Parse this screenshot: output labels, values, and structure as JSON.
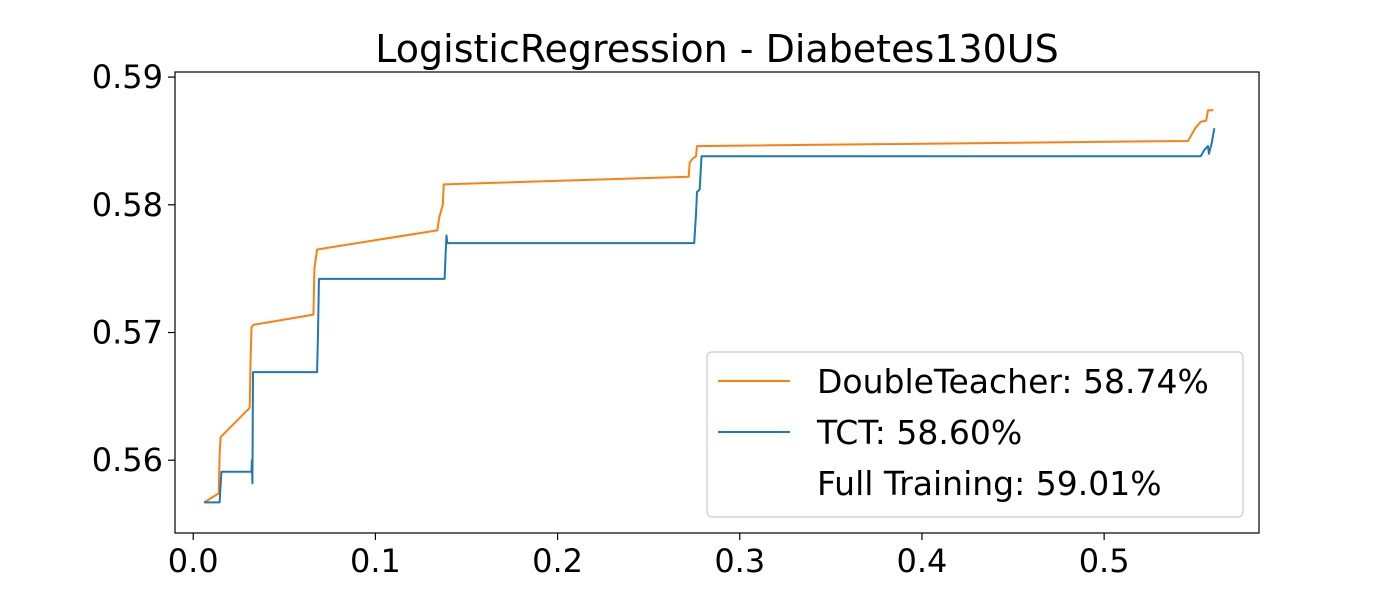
{
  "chart_data": {
    "type": "line",
    "title": "LogisticRegression - Diabetes130US",
    "xlabel": "",
    "ylabel": "",
    "xlim": [
      -0.01,
      0.585
    ],
    "ylim": [
      0.5543,
      0.5904
    ],
    "xticks": [
      {
        "value": 0.0,
        "label": "0.0"
      },
      {
        "value": 0.1,
        "label": "0.1"
      },
      {
        "value": 0.2,
        "label": "0.2"
      },
      {
        "value": 0.3,
        "label": "0.3"
      },
      {
        "value": 0.4,
        "label": "0.4"
      },
      {
        "value": 0.5,
        "label": "0.5"
      }
    ],
    "yticks": [
      {
        "value": 0.56,
        "label": "0.56"
      },
      {
        "value": 0.57,
        "label": "0.57"
      },
      {
        "value": 0.58,
        "label": "0.58"
      },
      {
        "value": 0.59,
        "label": "0.59"
      }
    ],
    "grid": false,
    "legend_position": "lower-right",
    "series": [
      {
        "name": "DoubleTeacher: 58.74%",
        "color": "#ff7f0e",
        "points": [
          [
            0.006,
            0.5567
          ],
          [
            0.014,
            0.5574
          ],
          [
            0.0145,
            0.5604
          ],
          [
            0.015,
            0.5618
          ],
          [
            0.031,
            0.5641
          ],
          [
            0.0315,
            0.568
          ],
          [
            0.032,
            0.5704
          ],
          [
            0.033,
            0.5706
          ],
          [
            0.066,
            0.5714
          ],
          [
            0.0665,
            0.575
          ],
          [
            0.068,
            0.5765
          ],
          [
            0.134,
            0.578
          ],
          [
            0.135,
            0.579
          ],
          [
            0.137,
            0.58
          ],
          [
            0.1375,
            0.5816
          ],
          [
            0.272,
            0.5822
          ],
          [
            0.2725,
            0.5833
          ],
          [
            0.274,
            0.5836
          ],
          [
            0.276,
            0.5838
          ],
          [
            0.2765,
            0.5846
          ],
          [
            0.546,
            0.585
          ],
          [
            0.55,
            0.586
          ],
          [
            0.553,
            0.5865
          ],
          [
            0.556,
            0.5866
          ],
          [
            0.557,
            0.5874
          ],
          [
            0.56,
            0.5874
          ]
        ]
      },
      {
        "name": "TCT: 58.60%",
        "color": "#1f77b4",
        "points": [
          [
            0.006,
            0.5567
          ],
          [
            0.0145,
            0.5567
          ],
          [
            0.015,
            0.558
          ],
          [
            0.0155,
            0.5591
          ],
          [
            0.032,
            0.5591
          ],
          [
            0.0322,
            0.56
          ],
          [
            0.0325,
            0.5582
          ],
          [
            0.0328,
            0.5669
          ],
          [
            0.068,
            0.5669
          ],
          [
            0.0685,
            0.57
          ],
          [
            0.069,
            0.5742
          ],
          [
            0.138,
            0.5742
          ],
          [
            0.1385,
            0.576
          ],
          [
            0.139,
            0.5776
          ],
          [
            0.1395,
            0.577
          ],
          [
            0.275,
            0.577
          ],
          [
            0.2755,
            0.5782
          ],
          [
            0.276,
            0.5793
          ],
          [
            0.2765,
            0.581
          ],
          [
            0.278,
            0.5812
          ],
          [
            0.279,
            0.5838
          ],
          [
            0.553,
            0.5838
          ],
          [
            0.555,
            0.5843
          ],
          [
            0.557,
            0.5846
          ],
          [
            0.5575,
            0.584
          ],
          [
            0.559,
            0.5848
          ],
          [
            0.5605,
            0.586
          ]
        ]
      }
    ],
    "legend": [
      {
        "label": "DoubleTeacher: 58.74%",
        "color": "#ff7f0e",
        "line": true
      },
      {
        "label": "TCT: 58.60%",
        "color": "#1f77b4",
        "line": true
      },
      {
        "label": "Full Training: 59.01%",
        "color": "#000000",
        "line": false
      }
    ]
  }
}
